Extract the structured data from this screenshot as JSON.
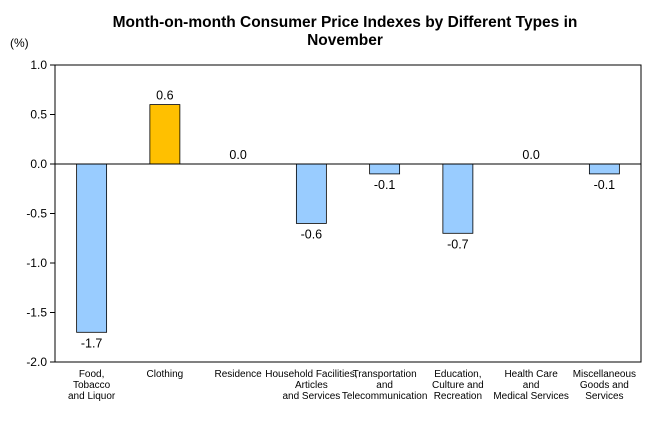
{
  "chart_data": {
    "type": "bar",
    "title_lines": [
      "Month-on-month Consumer Price Indexes by Different Types in",
      "November"
    ],
    "unit_label": "(%)",
    "xlabel": "",
    "ylabel": "",
    "ylim": [
      -2.0,
      1.0
    ],
    "yticks": [
      "1.0",
      "0.5",
      "0.0",
      "-0.5",
      "-1.0",
      "-1.5",
      "-2.0"
    ],
    "ytick_values": [
      1.0,
      0.5,
      0.0,
      -0.5,
      -1.0,
      -1.5,
      -2.0
    ],
    "grid": false,
    "legend": "none",
    "categories": [
      [
        "Food,",
        "Tobacco",
        "and Liquor"
      ],
      [
        "Clothing"
      ],
      [
        "Residence"
      ],
      [
        "Household Facilities,",
        "Articles",
        "and Services"
      ],
      [
        "Transportation",
        "and",
        "Telecommunication"
      ],
      [
        "Education,",
        "Culture and",
        "Recreation"
      ],
      [
        "Health Care",
        "and",
        "Medical Services"
      ],
      [
        "Miscellaneous",
        "Goods and",
        "Services"
      ]
    ],
    "values": [
      -1.7,
      0.6,
      0.0,
      -0.6,
      -0.1,
      -0.7,
      0.0,
      -0.1
    ],
    "value_labels": [
      "-1.7",
      "0.6",
      "0.0",
      "-0.6",
      "-0.1",
      "-0.7",
      "0.0",
      "-0.1"
    ],
    "colors": {
      "negative_fill": "#99CCFF",
      "positive_fill": "#FFC000",
      "bar_stroke": "#000000",
      "axis": "#000000"
    }
  }
}
